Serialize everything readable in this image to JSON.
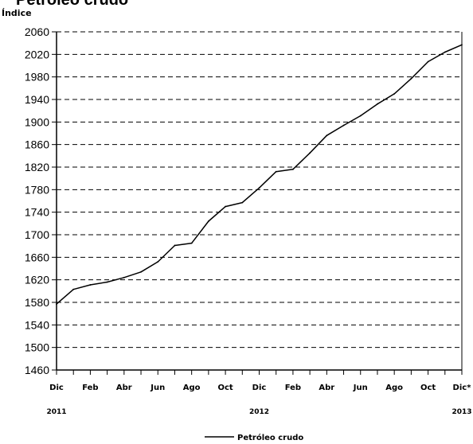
{
  "chart_data": {
    "type": "line",
    "title": "Petróleo crudo",
    "ylabel": "Índice",
    "xlabel": "",
    "ylim": [
      1460,
      2060
    ],
    "yticks": [
      1460,
      1500,
      1540,
      1580,
      1620,
      1660,
      1700,
      1740,
      1780,
      1820,
      1860,
      1900,
      1940,
      1980,
      2020,
      2060
    ],
    "grid": "horizontal-dashed",
    "legend_placement": "bottom-center",
    "x_tick_labels": [
      "Dic",
      "Feb",
      "Abr",
      "Jun",
      "Ago",
      "Oct",
      "Dic",
      "Feb",
      "Abr",
      "Jun",
      "Ago",
      "Oct",
      "Dic*"
    ],
    "x_year_labels": [
      {
        "label": "2011",
        "month_index": 0
      },
      {
        "label": "2012",
        "month_index": 12
      },
      {
        "label": "2013",
        "month_index": 24
      }
    ],
    "categories": [
      "Dic 2011",
      "Ene 2012",
      "Feb 2012",
      "Mar 2012",
      "Abr 2012",
      "May 2012",
      "Jun 2012",
      "Jul 2012",
      "Ago 2012",
      "Sep 2012",
      "Oct 2012",
      "Nov 2012",
      "Dic 2012",
      "Ene 2013",
      "Feb 2013",
      "Mar 2013",
      "Abr 2013",
      "May 2013",
      "Jun 2013",
      "Jul 2013",
      "Ago 2013",
      "Sep 2013",
      "Oct 2013",
      "Nov 2013",
      "Dic 2013*"
    ],
    "series": [
      {
        "name": "Petróleo crudo",
        "color": "#000000",
        "values": [
          1577,
          1603,
          1611,
          1616,
          1624,
          1634,
          1652,
          1681,
          1685,
          1724,
          1750,
          1757,
          1783,
          1812,
          1816,
          1845,
          1876,
          1894,
          1911,
          1932,
          1950,
          1977,
          2007,
          2024,
          2037
        ]
      }
    ]
  }
}
